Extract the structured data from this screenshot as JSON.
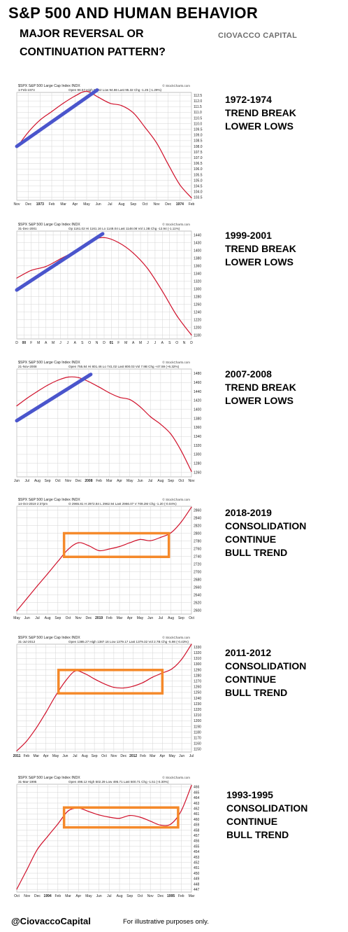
{
  "header": {
    "title": "S&P 500 AND HUMAN BEHAVIOR",
    "subtitle_line1": "MAJOR REVERSAL OR",
    "subtitle_line2": "CONTINUATION PATTERN?",
    "brand": "CIOVACCO CAPITAL"
  },
  "footer": {
    "handle": "@CiovaccoCapital",
    "note": "For illustrative purposes only."
  },
  "colors": {
    "price_line": "#d0102a",
    "trendline": "#4a55cc",
    "consolidation_box": "#f5892a",
    "grid": "#d4d4d4"
  },
  "chart_data": [
    {
      "type": "line",
      "period": "1972-1974",
      "label_lines": [
        "1972-1974",
        "TREND BREAK",
        "LOWER LOWS"
      ],
      "header_left": "$SPX S&P 500 Large Cap Index INDX",
      "header_date": "1-Feb-1974",
      "header_ohlc": "Open 96.57 High 96.62 Low 94.86 Last 95.32 Chg -1.25 (-1.29%)",
      "watermark": "© StockCharts.com",
      "x_ticks": [
        "Nov",
        "Dec",
        "1973",
        "Feb",
        "Mar",
        "Apr",
        "May",
        "Jun",
        "Jul",
        "Aug",
        "Sep",
        "Oct",
        "Nov",
        "Dec",
        "1974",
        "Feb"
      ],
      "bold_ticks": [
        "1973",
        "1974"
      ],
      "y_ticks": [
        "112.5",
        "112.0",
        "111.5",
        "111.0",
        "110.5",
        "110.0",
        "109.5",
        "109.0",
        "108.5",
        "108.0",
        "107.5",
        "107.0",
        "106.5",
        "106.0",
        "105.5",
        "105.0",
        "104.5",
        "104.0",
        "103.5"
      ],
      "ylim": [
        103.5,
        112.5
      ],
      "x": [
        0,
        1,
        2,
        3,
        4,
        5,
        6,
        7,
        8,
        9,
        10,
        11,
        12,
        13,
        14,
        15
      ],
      "values": [
        107.9,
        109.2,
        110.2,
        110.9,
        111.6,
        112.2,
        112.6,
        112.1,
        111.6,
        111.4,
        110.8,
        109.6,
        108.3,
        106.5,
        104.8,
        103.7
      ],
      "annotation": {
        "kind": "trendline",
        "from": [
          0,
          108.0
        ],
        "to": [
          6.9,
          112.7
        ]
      }
    },
    {
      "type": "line",
      "period": "1999-2001",
      "label_lines": [
        "1999-2001",
        "TREND BREAK",
        "LOWER LOWS"
      ],
      "header_left": "$SPX S&P 500 Large Cap Index INDX",
      "header_date": "31-Dec-2001",
      "header_ohlc": "Op 1161.02 Hi 1161.16 Lo 1148.04 Last 1148.08 Vol 1.3B Chg -12.94 (-1.11%)",
      "watermark": "© StockCharts.com",
      "x_ticks": [
        "D",
        "00",
        "F",
        "M",
        "A",
        "M",
        "J",
        "J",
        "A",
        "S",
        "O",
        "N",
        "D",
        "01",
        "F",
        "M",
        "A",
        "M",
        "J",
        "J",
        "A",
        "S",
        "O",
        "N",
        "D"
      ],
      "bold_ticks": [
        "00",
        "01"
      ],
      "y_ticks": [
        "1440",
        "1430",
        "1400",
        "1380",
        "1360",
        "1340",
        "1320",
        "1300",
        "1280",
        "1260",
        "1240",
        "1220",
        "1200",
        "1180"
      ],
      "ylim": [
        1170,
        1450
      ],
      "x": [
        0,
        2,
        4,
        6,
        8,
        10,
        12,
        14,
        16,
        18,
        20,
        22,
        24
      ],
      "values": [
        1328,
        1348,
        1358,
        1378,
        1398,
        1424,
        1433,
        1420,
        1393,
        1352,
        1294,
        1230,
        1180
      ],
      "annotation": {
        "kind": "trendline",
        "from": [
          0,
          1297
        ],
        "to": [
          11.8,
          1443
        ]
      }
    },
    {
      "type": "line",
      "period": "2007-2008",
      "label_lines": [
        "2007-2008",
        "TREND BREAK",
        "LOWER LOWS"
      ],
      "header_left": "$SPX S&P 500 Large Cap Index INDX",
      "header_date": "21-Nov-2008",
      "header_ohlc": "Open 755.84 Hi 801.46 Lo 741.02 Last 800.03 Vol 7.9B Chg +47.59 (+6.32%)",
      "watermark": "© StockCharts.com",
      "x_ticks": [
        "Jun",
        "Jul",
        "Aug",
        "Sep",
        "Oct",
        "Nov",
        "Dec",
        "2008",
        "Feb",
        "Mar",
        "Apr",
        "May",
        "Jun",
        "Jul",
        "Aug",
        "Sep",
        "Oct",
        "Nov"
      ],
      "bold_ticks": [
        "2008"
      ],
      "y_ticks": [
        "1480",
        "1460",
        "1440",
        "1420",
        "1400",
        "1380",
        "1360",
        "1340",
        "1320",
        "1300",
        "1280",
        "1260"
      ],
      "ylim": [
        1250,
        1490
      ],
      "x": [
        0,
        1,
        2,
        3,
        4,
        5,
        6,
        7,
        8,
        9,
        10,
        11,
        12,
        13,
        14,
        15,
        16,
        17
      ],
      "values": [
        1408,
        1425,
        1440,
        1454,
        1465,
        1472,
        1471,
        1462,
        1450,
        1437,
        1427,
        1422,
        1406,
        1384,
        1367,
        1345,
        1308,
        1262
      ],
      "annotation": {
        "kind": "trendline",
        "from": [
          0,
          1375
        ],
        "to": [
          7.2,
          1478
        ]
      }
    },
    {
      "type": "line",
      "period": "2018-2019",
      "label_lines": [
        "2018-2019",
        "CONSOLIDATION",
        "CONTINUE",
        "BULL TREND"
      ],
      "header_left": "$SPX S&P 500 Large Cap Index INDX",
      "header_date": "14-Oct-2019 2:37pm",
      "header_ohlc": "O 2965.81 H 2972.84 L 2962.94 Last 2966.07 V 709.2M Chg -1.20 (-0.04%)",
      "watermark": "© StockCharts.com",
      "x_ticks": [
        "May",
        "Jun",
        "Jul",
        "Aug",
        "Sep",
        "Oct",
        "Nov",
        "Dec",
        "2019",
        "Feb",
        "Mar",
        "Apr",
        "May",
        "Jun",
        "Jul",
        "Aug",
        "Sep",
        "Oct"
      ],
      "bold_ticks": [
        "2019"
      ],
      "y_ticks": [
        "2860",
        "2840",
        "2820",
        "2800",
        "2780",
        "2760",
        "2740",
        "2720",
        "2700",
        "2680",
        "2660",
        "2640",
        "2620",
        "2600"
      ],
      "ylim": [
        2600,
        2860
      ],
      "x": [
        0,
        1,
        2,
        3,
        4,
        5,
        6,
        7,
        8,
        9,
        10,
        11,
        12,
        13,
        14,
        15,
        16,
        17
      ],
      "values": [
        2608,
        2638,
        2668,
        2697,
        2727,
        2756,
        2772,
        2765,
        2753,
        2757,
        2763,
        2772,
        2780,
        2777,
        2785,
        2796,
        2822,
        2858
      ],
      "annotation": {
        "kind": "consolidation-box",
        "x": [
          4.6,
          14.8
        ],
        "y": [
          2738,
          2795
        ]
      }
    },
    {
      "type": "line",
      "period": "2011-2012",
      "label_lines": [
        "2011-2012",
        "CONSOLIDATION",
        "CONTINUE",
        "BULL TREND"
      ],
      "header_left": "$SPX S&P 500 Large Cap Index INDX",
      "header_date": "31-Jul-2012",
      "header_ohlc": "Open 1385.27 High 1387.16 Low 1379.17 Last 1379.32 Vol 2.7B Chg -5.98 (-0.43%)",
      "watermark": "© StockCharts.com",
      "x_ticks": [
        "2011",
        "Feb",
        "Mar",
        "Apr",
        "May",
        "Jun",
        "Jul",
        "Aug",
        "Sep",
        "Oct",
        "Nov",
        "Dec",
        "2012",
        "Feb",
        "Mar",
        "Apr",
        "May",
        "Jun",
        "Jul"
      ],
      "bold_ticks": [
        "2011",
        "2012"
      ],
      "y_ticks": [
        "1330",
        "1320",
        "1310",
        "1300",
        "1290",
        "1280",
        "1270",
        "1260",
        "1250",
        "1240",
        "1230",
        "1220",
        "1210",
        "1200",
        "1190",
        "1180",
        "1170",
        "1160",
        "1150"
      ],
      "ylim": [
        1150,
        1330
      ],
      "x": [
        0,
        1,
        2,
        3,
        4,
        5,
        6,
        7,
        8,
        9,
        10,
        11,
        12,
        13,
        14,
        15,
        16,
        17,
        18
      ],
      "values": [
        1152,
        1168,
        1190,
        1216,
        1244,
        1268,
        1285,
        1281,
        1272,
        1264,
        1258,
        1257,
        1260,
        1266,
        1275,
        1282,
        1289,
        1305,
        1330
      ],
      "annotation": {
        "kind": "consolidation-box",
        "x": [
          4.3,
          15.0
        ],
        "y": [
          1248,
          1287
        ]
      }
    },
    {
      "type": "line",
      "period": "1993-1995",
      "label_lines": [
        "1993-1995",
        "CONSOLIDATION",
        "CONTINUE",
        "BULL TREND"
      ],
      "header_left": "$SPX S&P 500 Large Cap Index INDX",
      "header_date": "31-Mar-1995",
      "header_ohlc": "Open 498.12 High 502.29 Low 495.71 Last 500.71 Chg -1.51 (-0.30%)",
      "watermark": "© StockCharts.com",
      "x_ticks": [
        "Oct",
        "Nov",
        "Dec",
        "1994",
        "Feb",
        "Mar",
        "Apr",
        "May",
        "Jun",
        "Jul",
        "Aug",
        "Sep",
        "Oct",
        "Nov",
        "Dec",
        "1995",
        "Feb",
        "Mar"
      ],
      "bold_ticks": [
        "1994",
        "1995"
      ],
      "y_ticks": [
        "466",
        "465",
        "464",
        "463",
        "462",
        "461",
        "460",
        "459",
        "458",
        "457",
        "456",
        "455",
        "454",
        "453",
        "452",
        "451",
        "450",
        "449",
        "448",
        "447"
      ],
      "ylim": [
        447,
        466
      ],
      "x": [
        0,
        1,
        2,
        3,
        4,
        5,
        6,
        7,
        8,
        9,
        10,
        11,
        12,
        13,
        14,
        15,
        16,
        17
      ],
      "values": [
        447.5,
        451.0,
        454.5,
        456.8,
        459.0,
        461.3,
        461.8,
        461.2,
        460.6,
        460.2,
        460.0,
        460.5,
        460.2,
        459.5,
        458.8,
        459.0,
        461.3,
        465.8
      ],
      "annotation": {
        "kind": "consolidation-box",
        "x": [
          4.6,
          15.7
        ],
        "y": [
          458.4,
          461.9
        ]
      }
    }
  ]
}
